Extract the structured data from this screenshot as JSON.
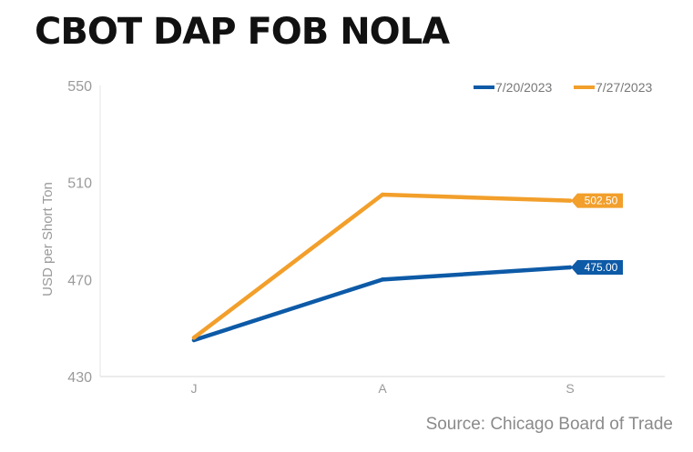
{
  "title": "CBOT DAP FOB NOLA",
  "source": "Source: Chicago Board of Trade",
  "chart_data": {
    "type": "line",
    "title": "CBOT DAP FOB NOLA",
    "ylabel": "USD per Short Ton",
    "xlabel": "",
    "categories": [
      "J",
      "A",
      "S"
    ],
    "ylim": [
      430,
      550
    ],
    "yticks": [
      430,
      470,
      510,
      550
    ],
    "grid": false,
    "legend": "top-right",
    "series": [
      {
        "name": "7/20/2023",
        "color": "#0d5aa7",
        "values": [
          445,
          470,
          475
        ],
        "end_label": "475.00"
      },
      {
        "name": "7/27/2023",
        "color": "#f29f2b",
        "values": [
          446,
          505,
          502.5
        ],
        "end_label": "502.50"
      }
    ]
  }
}
